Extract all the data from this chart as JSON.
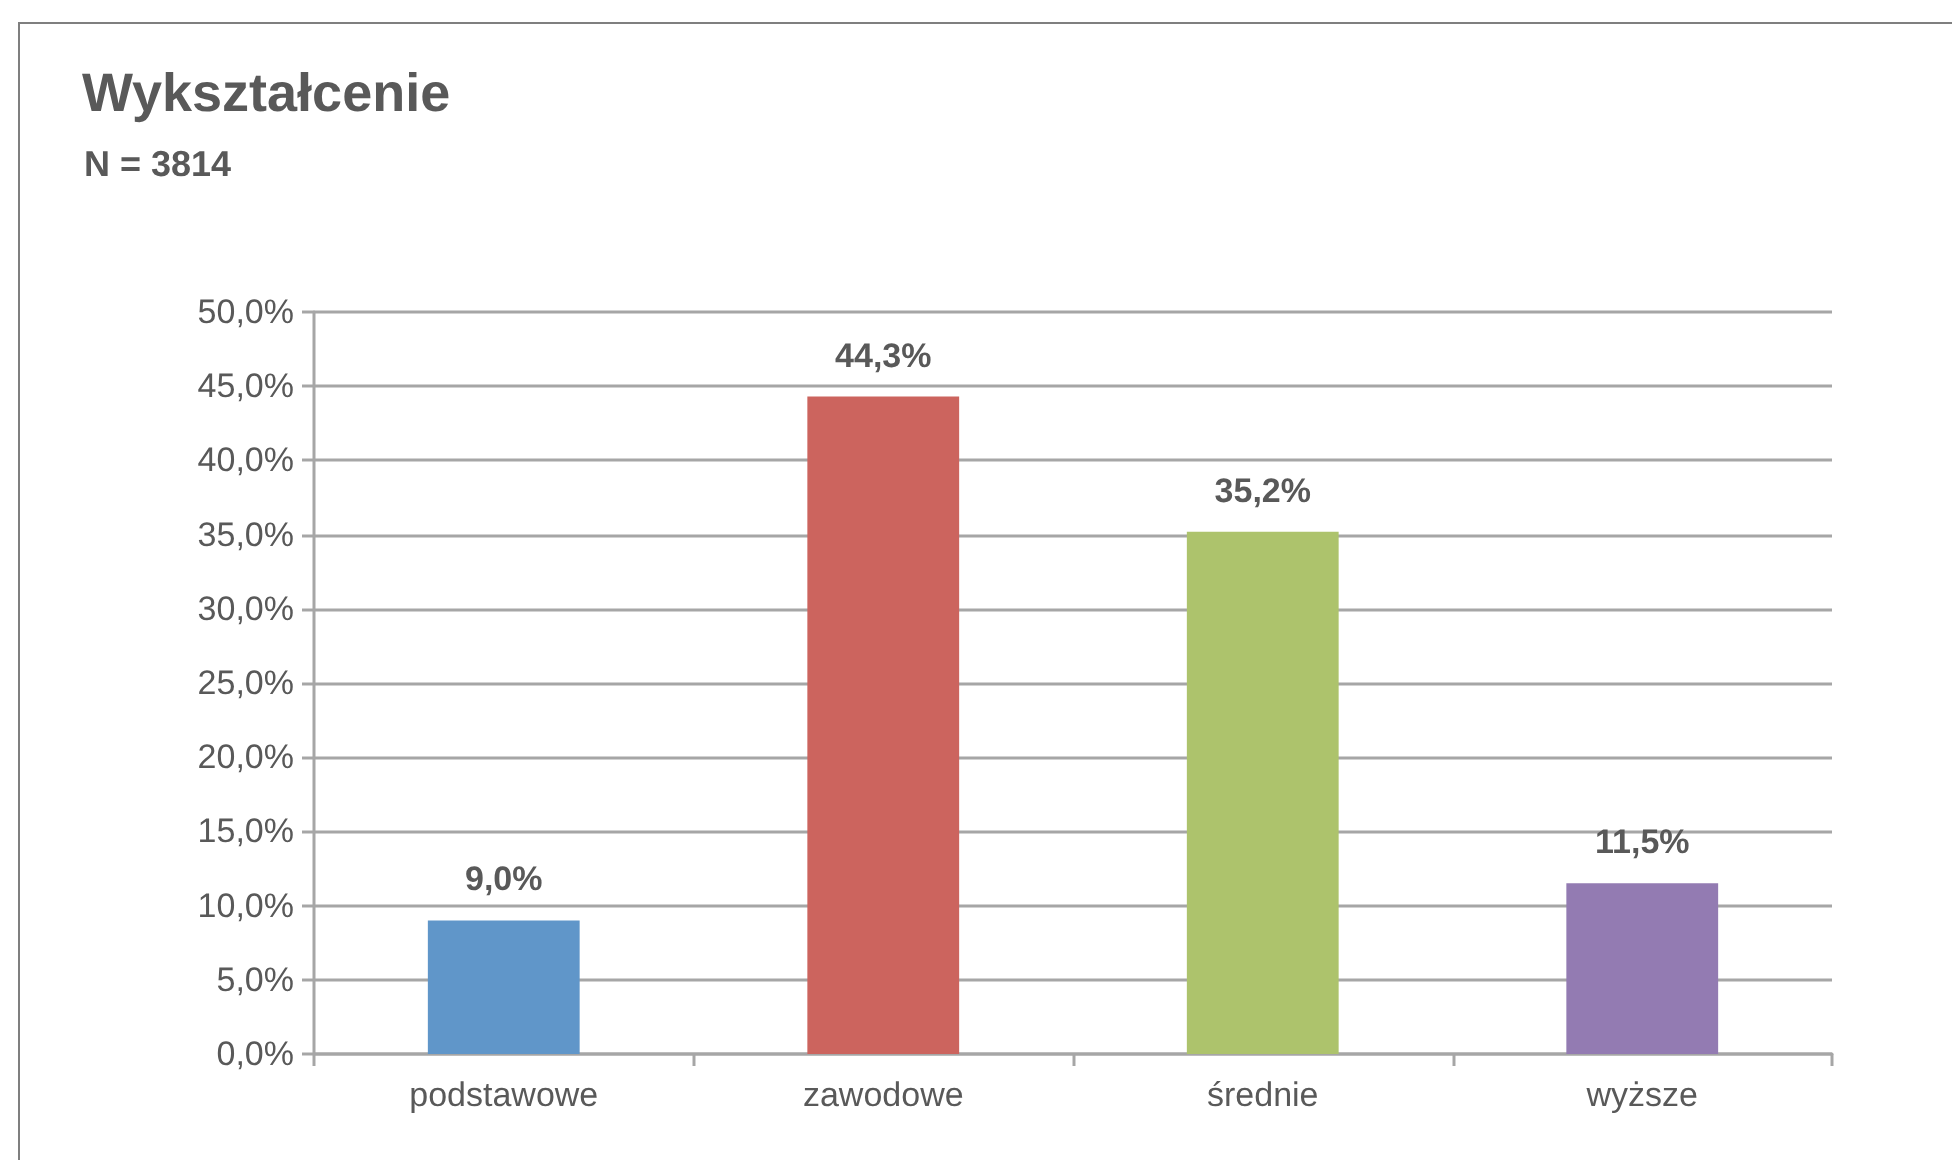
{
  "chart_data": {
    "type": "bar",
    "title": "Wykształcenie",
    "subtitle": "N = 3814",
    "categories": [
      "podstawowe",
      "zawodowe",
      "średnie",
      "wyższe"
    ],
    "values": [
      9.0,
      44.3,
      35.2,
      11.5
    ],
    "colors": [
      "#6096c9",
      "#cc645e",
      "#adc36c",
      "#937bb2"
    ],
    "value_labels": [
      "9,0%",
      "44,3%",
      "35,2%",
      "11,5%"
    ],
    "ylim": [
      0,
      50
    ],
    "yticks": [
      {
        "value": 0,
        "label": "0,0%"
      },
      {
        "value": 5,
        "label": "5,0%"
      },
      {
        "value": 10,
        "label": "10,0%"
      },
      {
        "value": 15,
        "label": "15,0%"
      },
      {
        "value": 20,
        "label": "20,0%"
      },
      {
        "value": 25,
        "label": "25,0%"
      },
      {
        "value": 30,
        "label": "30,0%"
      },
      {
        "value": 35,
        "label": "35,0%"
      },
      {
        "value": 40,
        "label": "40,0%"
      },
      {
        "value": 45,
        "label": "45,0%"
      },
      {
        "value": 50,
        "label": "50,0%"
      }
    ],
    "grid": "y"
  }
}
